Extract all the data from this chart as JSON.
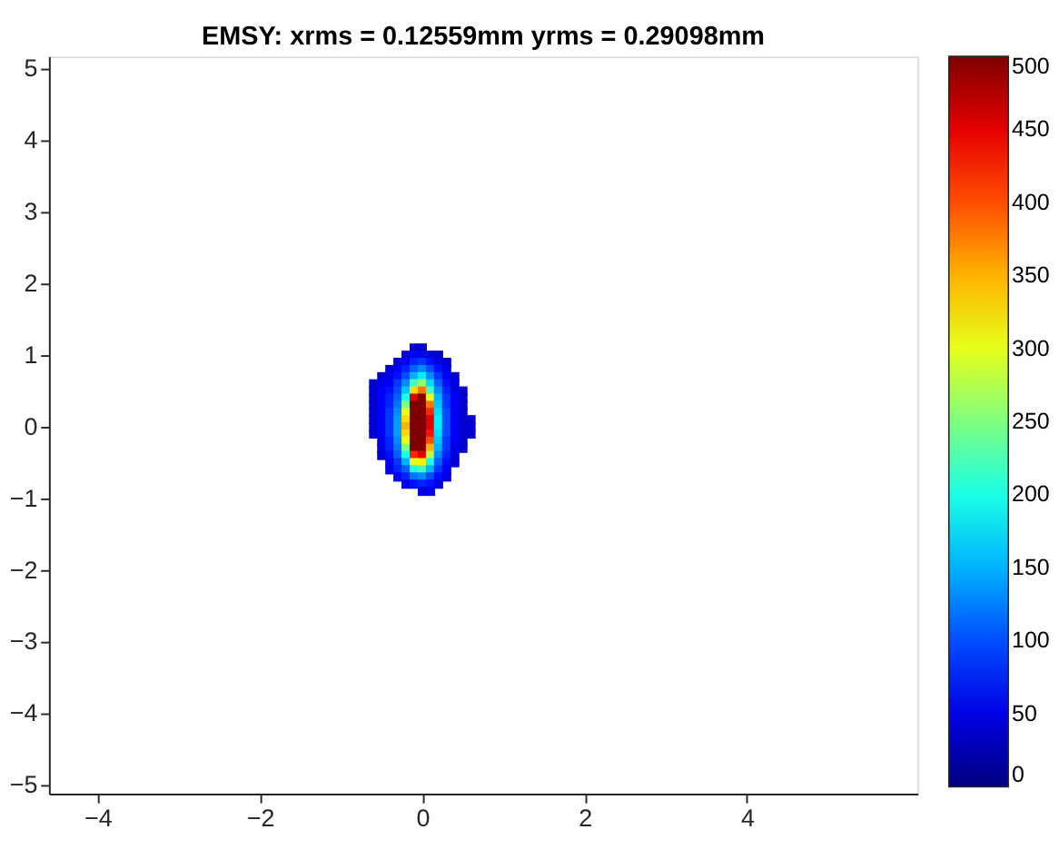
{
  "chart_data": {
    "type": "scatter",
    "title": "EMSY: xrms = 0.12559mm  yrms = 0.29098mm",
    "marker": "square",
    "x": [
      -0.1,
      0,
      -0.2,
      -0.1,
      0,
      0.1,
      0.2,
      -0.3,
      -0.2,
      -0.1,
      0,
      0.1,
      0.2,
      0.3,
      -0.4,
      -0.3,
      -0.2,
      -0.1,
      0,
      0.1,
      0.2,
      0.3,
      -0.5,
      -0.4,
      -0.3,
      -0.2,
      -0.1,
      0,
      0.1,
      0.2,
      0.3,
      0.4,
      -0.6,
      -0.5,
      -0.4,
      -0.3,
      -0.2,
      -0.1,
      0,
      0.1,
      0.2,
      0.3,
      0.4,
      -0.6,
      -0.5,
      -0.4,
      -0.3,
      -0.2,
      -0.1,
      0,
      0.1,
      0.2,
      0.3,
      0.4,
      0.5,
      -0.6,
      -0.5,
      -0.4,
      -0.3,
      -0.2,
      -0.1,
      0,
      0.1,
      0.2,
      0.3,
      0.4,
      0.5,
      -0.6,
      -0.5,
      -0.4,
      -0.3,
      -0.2,
      -0.1,
      0,
      0.1,
      0.2,
      0.3,
      0.4,
      0.5,
      -0.6,
      -0.5,
      -0.4,
      -0.3,
      -0.2,
      -0.1,
      0,
      0.1,
      0.2,
      0.3,
      0.4,
      0.5,
      -0.6,
      -0.5,
      -0.4,
      -0.3,
      -0.2,
      -0.1,
      0,
      0.1,
      0.2,
      0.3,
      0.4,
      0.5,
      0.6,
      -0.6,
      -0.5,
      -0.4,
      -0.3,
      -0.2,
      -0.1,
      0,
      0.1,
      0.2,
      0.3,
      0.4,
      0.5,
      0.6,
      -0.6,
      -0.5,
      -0.4,
      -0.3,
      -0.2,
      -0.1,
      0,
      0.1,
      0.2,
      0.3,
      0.4,
      0.5,
      0.6,
      -0.5,
      -0.4,
      -0.3,
      -0.2,
      -0.1,
      0,
      0.1,
      0.2,
      0.3,
      0.4,
      0.5,
      -0.5,
      -0.4,
      -0.3,
      -0.2,
      -0.1,
      0,
      0.1,
      0.2,
      0.3,
      0.4,
      0.5,
      -0.5,
      -0.4,
      -0.3,
      -0.2,
      -0.1,
      0,
      0.1,
      0.2,
      0.3,
      0.4,
      -0.4,
      -0.3,
      -0.2,
      -0.1,
      0,
      0.1,
      0.2,
      0.3,
      0.4,
      -0.4,
      -0.3,
      -0.2,
      -0.1,
      0,
      0.1,
      0.2,
      0.3,
      -0.3,
      -0.2,
      -0.1,
      0,
      0.1,
      0.2,
      0.3,
      -0.2,
      -0.1,
      0,
      0.1,
      0.2,
      0,
      0.1
    ],
    "values": [
      1.1,
      1.1,
      1.0,
      1.0,
      1.0,
      1.0,
      1.0,
      0.9,
      0.9,
      0.9,
      0.9,
      0.9,
      0.9,
      0.9,
      0.8,
      0.8,
      0.8,
      0.8,
      0.8,
      0.8,
      0.8,
      0.8,
      0.7,
      0.7,
      0.7,
      0.7,
      0.7,
      0.7,
      0.7,
      0.7,
      0.7,
      0.7,
      0.6,
      0.6,
      0.6,
      0.6,
      0.6,
      0.6,
      0.6,
      0.6,
      0.6,
      0.6,
      0.6,
      0.5,
      0.5,
      0.5,
      0.5,
      0.5,
      0.5,
      0.5,
      0.5,
      0.5,
      0.5,
      0.5,
      0.5,
      0.4,
      0.4,
      0.4,
      0.4,
      0.4,
      0.4,
      0.4,
      0.4,
      0.4,
      0.4,
      0.4,
      0.4,
      0.3,
      0.3,
      0.3,
      0.3,
      0.3,
      0.3,
      0.3,
      0.3,
      0.3,
      0.3,
      0.3,
      0.3,
      0.2,
      0.2,
      0.2,
      0.2,
      0.2,
      0.2,
      0.2,
      0.2,
      0.2,
      0.2,
      0.2,
      0.2,
      0.1,
      0.1,
      0.1,
      0.1,
      0.1,
      0.1,
      0.1,
      0.1,
      0.1,
      0.1,
      0.1,
      0.1,
      0.1,
      0,
      0,
      0,
      0,
      0,
      0,
      0,
      0,
      0,
      0,
      0,
      0,
      0,
      -0.1,
      -0.1,
      -0.1,
      -0.1,
      -0.1,
      -0.1,
      -0.1,
      -0.1,
      -0.1,
      -0.1,
      -0.1,
      -0.1,
      -0.1,
      -0.2,
      -0.2,
      -0.2,
      -0.2,
      -0.2,
      -0.2,
      -0.2,
      -0.2,
      -0.2,
      -0.2,
      -0.2,
      -0.3,
      -0.3,
      -0.3,
      -0.3,
      -0.3,
      -0.3,
      -0.3,
      -0.3,
      -0.3,
      -0.3,
      -0.3,
      -0.4,
      -0.4,
      -0.4,
      -0.4,
      -0.4,
      -0.4,
      -0.4,
      -0.4,
      -0.4,
      -0.4,
      -0.5,
      -0.5,
      -0.5,
      -0.5,
      -0.5,
      -0.5,
      -0.5,
      -0.5,
      -0.5,
      -0.6,
      -0.6,
      -0.6,
      -0.6,
      -0.6,
      -0.6,
      -0.6,
      -0.6,
      -0.7,
      -0.7,
      -0.7,
      -0.7,
      -0.7,
      -0.7,
      -0.7,
      -0.8,
      -0.8,
      -0.8,
      -0.8,
      -0.8,
      -0.9,
      -0.9
    ],
    "cvalues": [
      40,
      40,
      40,
      60,
      60,
      50,
      40,
      40,
      60,
      80,
      90,
      70,
      50,
      40,
      40,
      60,
      80,
      110,
      130,
      100,
      70,
      50,
      40,
      50,
      70,
      100,
      150,
      180,
      130,
      90,
      60,
      40,
      40,
      50,
      60,
      90,
      130,
      220,
      260,
      170,
      110,
      70,
      50,
      40,
      60,
      70,
      100,
      160,
      330,
      380,
      220,
      130,
      80,
      50,
      40,
      40,
      60,
      80,
      110,
      200,
      450,
      500,
      300,
      150,
      90,
      60,
      40,
      40,
      60,
      80,
      120,
      250,
      500,
      500,
      380,
      160,
      90,
      60,
      40,
      40,
      60,
      90,
      130,
      300,
      500,
      500,
      420,
      170,
      100,
      60,
      40,
      40,
      60,
      90,
      140,
      330,
      500,
      500,
      450,
      180,
      100,
      60,
      40,
      40,
      40,
      60,
      90,
      140,
      350,
      500,
      500,
      450,
      180,
      100,
      60,
      40,
      40,
      40,
      60,
      90,
      140,
      330,
      500,
      500,
      430,
      170,
      100,
      60,
      40,
      40,
      50,
      80,
      130,
      300,
      500,
      500,
      400,
      160,
      90,
      60,
      40,
      50,
      80,
      120,
      250,
      500,
      500,
      350,
      150,
      90,
      50,
      40,
      40,
      70,
      110,
      200,
      420,
      450,
      280,
      130,
      80,
      50,
      60,
      90,
      150,
      300,
      320,
      200,
      110,
      70,
      40,
      50,
      80,
      110,
      200,
      220,
      150,
      90,
      60,
      60,
      80,
      120,
      130,
      100,
      70,
      50,
      50,
      70,
      80,
      70,
      50,
      50,
      50
    ],
    "xlim": [
      -4.6,
      6.1
    ],
    "xticks": [
      -4,
      -2,
      0,
      2,
      4
    ],
    "ylim": [
      -5.12,
      5.17
    ],
    "yticks": [
      -5,
      -4,
      -3,
      -2,
      -1,
      0,
      1,
      2,
      3,
      4,
      5
    ],
    "clim": [
      0,
      500
    ],
    "cticks": [
      0,
      50,
      100,
      150,
      200,
      250,
      300,
      350,
      400,
      450,
      500
    ],
    "grid": false
  }
}
